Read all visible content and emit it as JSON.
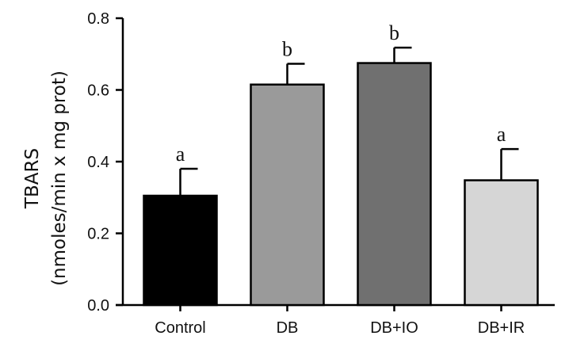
{
  "chart_data": {
    "type": "bar",
    "ylabel_line1": "TBARS",
    "ylabel_line2": "(nmoles/min x mg prot)",
    "ylim": [
      0,
      0.8
    ],
    "yticks": [
      {
        "value": 0.0,
        "label": "0.0"
      },
      {
        "value": 0.2,
        "label": "0.2"
      },
      {
        "value": 0.4,
        "label": "0.4"
      },
      {
        "value": 0.6,
        "label": "0.6"
      },
      {
        "value": 0.8,
        "label": "0.8"
      }
    ],
    "grid": false,
    "bars": [
      {
        "category": "Control",
        "value": 0.305,
        "error": 0.075,
        "significance": "a",
        "color": "#000000"
      },
      {
        "category": "DB",
        "value": 0.615,
        "error": 0.058,
        "significance": "b",
        "color": "#9a9a9a"
      },
      {
        "category": "DB+IO",
        "value": 0.675,
        "error": 0.043,
        "significance": "b",
        "color": "#707070"
      },
      {
        "category": "DB+IR",
        "value": 0.348,
        "error": 0.087,
        "significance": "a",
        "color": "#d6d6d6"
      }
    ]
  }
}
